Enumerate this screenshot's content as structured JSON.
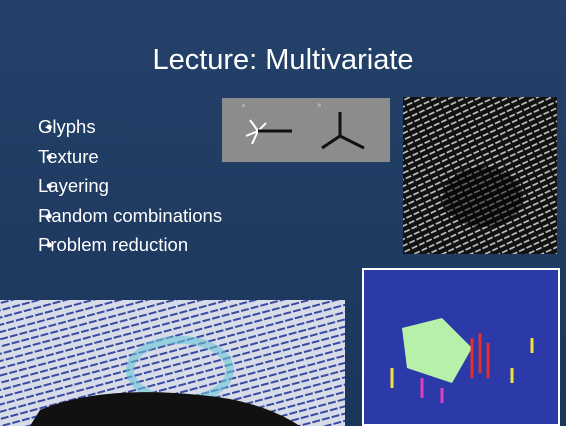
{
  "slide": {
    "title": "Lecture: Multivariate",
    "bullets": [
      "Glyphs",
      "Texture",
      "Layering",
      "Random combinations",
      "Problem reduction"
    ]
  },
  "images": {
    "glyph_labels": [
      "a",
      "b"
    ]
  }
}
